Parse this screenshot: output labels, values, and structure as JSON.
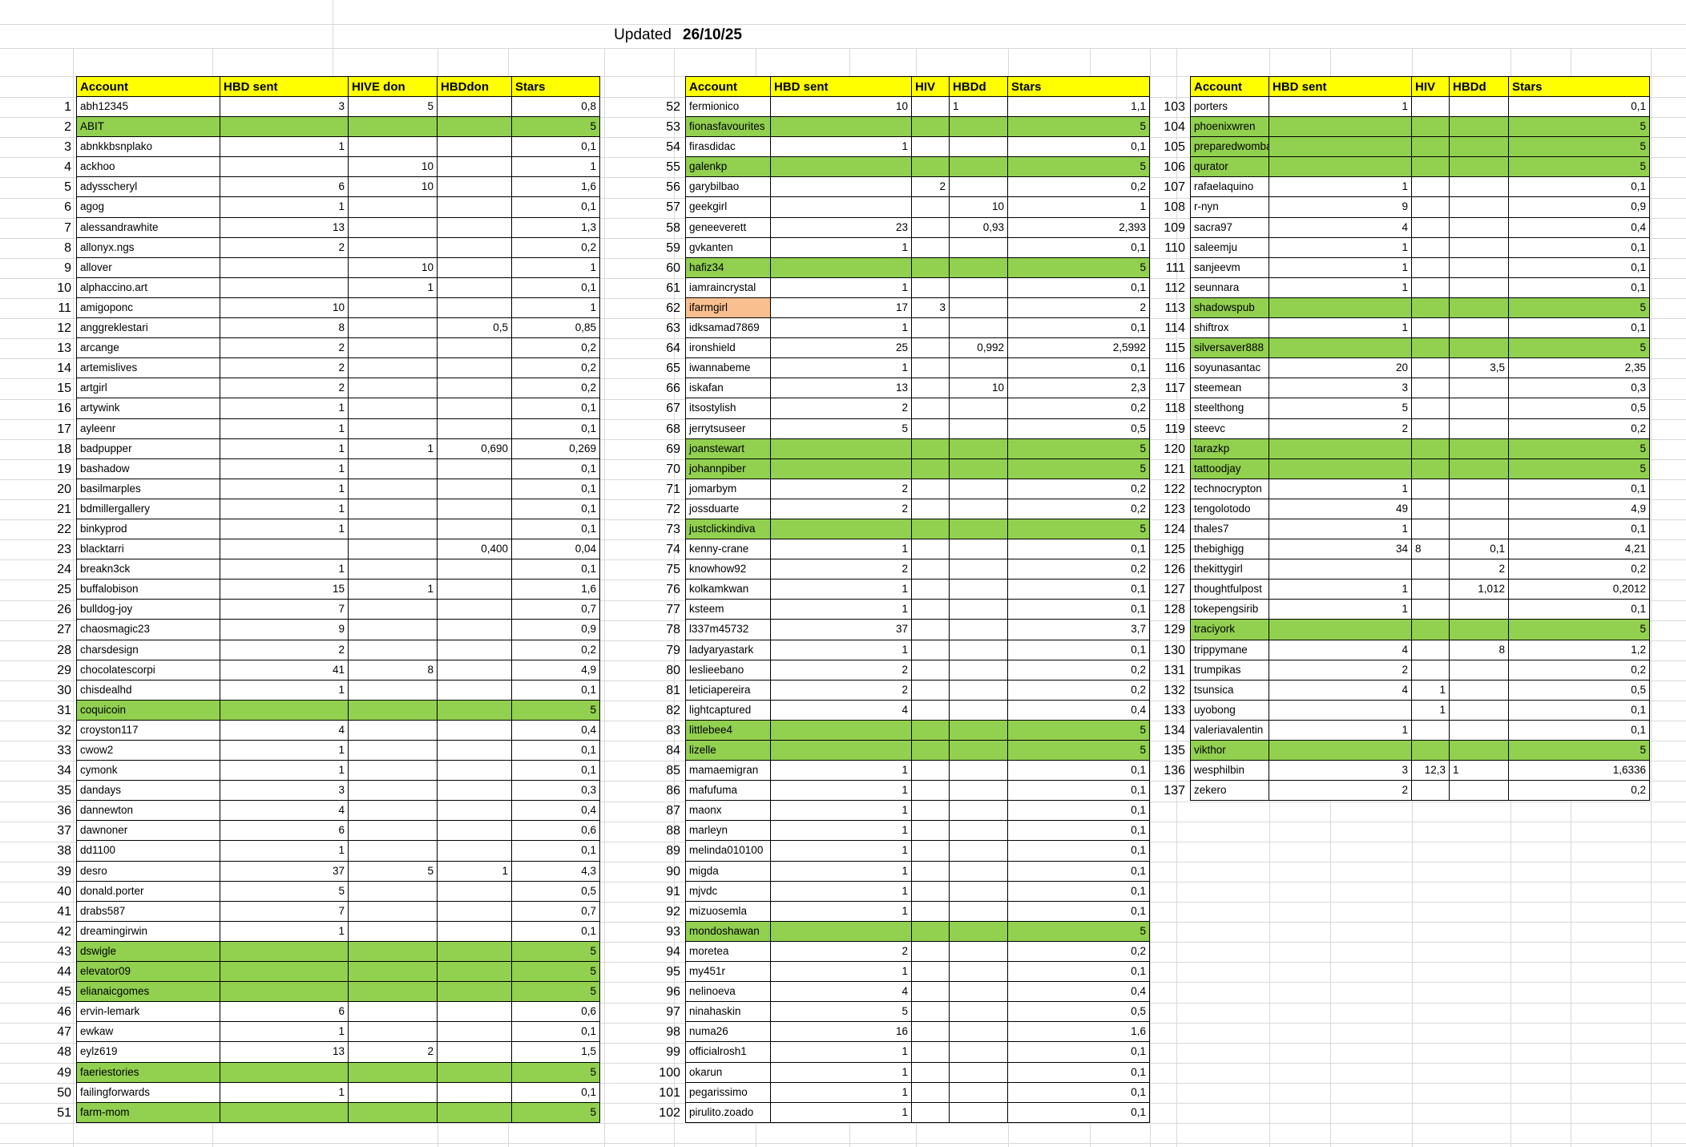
{
  "title": {
    "label": "Updated",
    "date": "26/10/25"
  },
  "colors": {
    "header_bg": "#FFFF00",
    "green_row": "#92D050",
    "orange_cell": "#FABF8F",
    "table_border": "#000000",
    "faint_grid": "#D9D9D9"
  },
  "row_format": [
    "account",
    "hbd_sent",
    "hive_don",
    "hbd_don",
    "stars",
    "flag: g=green-row, o=orange-account-cell, lh=hive-left-aligned, lb=hbdd-left-aligned"
  ],
  "tables": [
    {
      "start": 1,
      "headers": [
        "Account",
        "HBD sent",
        "HIVE don",
        "HBDdon",
        "Stars"
      ],
      "rows": [
        [
          "abh12345",
          "3",
          "5",
          "",
          "0,8",
          ""
        ],
        [
          "ABIT",
          "",
          "",
          "",
          "5",
          "g"
        ],
        [
          "abnkkbsnplako",
          "1",
          "",
          "",
          "0,1",
          ""
        ],
        [
          "ackhoo",
          "",
          "10",
          "",
          "1",
          ""
        ],
        [
          "adysscheryl",
          "6",
          "10",
          "",
          "1,6",
          ""
        ],
        [
          "agog",
          "1",
          "",
          "",
          "0,1",
          ""
        ],
        [
          "alessandrawhite",
          "13",
          "",
          "",
          "1,3",
          ""
        ],
        [
          "allonyx.ngs",
          "2",
          "",
          "",
          "0,2",
          ""
        ],
        [
          "allover",
          "",
          "10",
          "",
          "1",
          ""
        ],
        [
          "alphaccino.art",
          "",
          "1",
          "",
          "0,1",
          ""
        ],
        [
          "amigoponc",
          "10",
          "",
          "",
          "1",
          ""
        ],
        [
          "anggreklestari",
          "8",
          "",
          "0,5",
          "0,85",
          ""
        ],
        [
          "arcange",
          "2",
          "",
          "",
          "0,2",
          ""
        ],
        [
          "artemislives",
          "2",
          "",
          "",
          "0,2",
          ""
        ],
        [
          "artgirl",
          "2",
          "",
          "",
          "0,2",
          ""
        ],
        [
          "artywink",
          "1",
          "",
          "",
          "0,1",
          ""
        ],
        [
          "ayleenr",
          "1",
          "",
          "",
          "0,1",
          ""
        ],
        [
          "badpupper",
          "1",
          "1",
          "0,690",
          "0,269",
          ""
        ],
        [
          "bashadow",
          "1",
          "",
          "",
          "0,1",
          ""
        ],
        [
          "basilmarples",
          "1",
          "",
          "",
          "0,1",
          ""
        ],
        [
          "bdmillergallery",
          "1",
          "",
          "",
          "0,1",
          ""
        ],
        [
          "binkyprod",
          "1",
          "",
          "",
          "0,1",
          ""
        ],
        [
          "blacktarri",
          "",
          "",
          "0,400",
          "0,04",
          ""
        ],
        [
          "breakn3ck",
          "1",
          "",
          "",
          "0,1",
          ""
        ],
        [
          "buffalobison",
          "15",
          "1",
          "",
          "1,6",
          ""
        ],
        [
          "bulldog-joy",
          "7",
          "",
          "",
          "0,7",
          ""
        ],
        [
          "chaosmagic23",
          "9",
          "",
          "",
          "0,9",
          ""
        ],
        [
          "charsdesign",
          "2",
          "",
          "",
          "0,2",
          ""
        ],
        [
          "chocolatescorpi",
          "41",
          "8",
          "",
          "4,9",
          ""
        ],
        [
          "chisdealhd",
          "1",
          "",
          "",
          "0,1",
          ""
        ],
        [
          "coquicoin",
          "",
          "",
          "",
          "5",
          "g"
        ],
        [
          "croyston117",
          "4",
          "",
          "",
          "0,4",
          ""
        ],
        [
          "cwow2",
          "1",
          "",
          "",
          "0,1",
          ""
        ],
        [
          "cymonk",
          "1",
          "",
          "",
          "0,1",
          ""
        ],
        [
          "dandays",
          "3",
          "",
          "",
          "0,3",
          ""
        ],
        [
          "dannewton",
          "4",
          "",
          "",
          "0,4",
          ""
        ],
        [
          "dawnoner",
          "6",
          "",
          "",
          "0,6",
          ""
        ],
        [
          "dd1100",
          "1",
          "",
          "",
          "0,1",
          ""
        ],
        [
          "desro",
          "37",
          "5",
          "1",
          "4,3",
          ""
        ],
        [
          "donald.porter",
          "5",
          "",
          "",
          "0,5",
          ""
        ],
        [
          "drabs587",
          "7",
          "",
          "",
          "0,7",
          ""
        ],
        [
          "dreamingirwin",
          "1",
          "",
          "",
          "0,1",
          ""
        ],
        [
          "dswigle",
          "",
          "",
          "",
          "5",
          "g"
        ],
        [
          "elevator09",
          "",
          "",
          "",
          "5",
          "g"
        ],
        [
          "elianaicgomes",
          "",
          "",
          "",
          "5",
          "g"
        ],
        [
          "ervin-lemark",
          "6",
          "",
          "",
          "0,6",
          ""
        ],
        [
          "ewkaw",
          "1",
          "",
          "",
          "0,1",
          ""
        ],
        [
          "eylz619",
          "13",
          "2",
          "",
          "1,5",
          ""
        ],
        [
          "faeriestories",
          "",
          "",
          "",
          "5",
          "g"
        ],
        [
          "failingforwards",
          "1",
          "",
          "",
          "0,1",
          ""
        ],
        [
          "farm-mom",
          "",
          "",
          "",
          "5",
          "g"
        ]
      ]
    },
    {
      "start": 52,
      "headers": [
        "Account",
        "HBD sent",
        "HIV",
        "HBDd",
        "Stars"
      ],
      "rows": [
        [
          "fermionico",
          "10",
          "",
          "1",
          "1,1",
          "lb"
        ],
        [
          "fionasfavourites",
          "",
          "",
          "",
          "5",
          "g"
        ],
        [
          "firasdidac",
          "1",
          "",
          "",
          "0,1",
          ""
        ],
        [
          "galenkp",
          "",
          "",
          "",
          "5",
          "g"
        ],
        [
          "garybilbao",
          "",
          "2",
          "",
          "0,2",
          ""
        ],
        [
          "geekgirl",
          "",
          "",
          "10",
          "1",
          ""
        ],
        [
          "geneeverett",
          "23",
          "",
          "0,93",
          "2,393",
          ""
        ],
        [
          "gvkanten",
          "1",
          "",
          "",
          "0,1",
          ""
        ],
        [
          "hafiz34",
          "",
          "",
          "",
          "5",
          "g"
        ],
        [
          "iamraincrystal",
          "1",
          "",
          "",
          "0,1",
          ""
        ],
        [
          "ifarmgirl",
          "17",
          "3",
          "",
          "2",
          "o"
        ],
        [
          "idksamad7869",
          "1",
          "",
          "",
          "0,1",
          ""
        ],
        [
          "ironshield",
          "25",
          "",
          "0,992",
          "2,5992",
          ""
        ],
        [
          "iwannabeme",
          "1",
          "",
          "",
          "0,1",
          ""
        ],
        [
          "iskafan",
          "13",
          "",
          "10",
          "2,3",
          ""
        ],
        [
          "itsostylish",
          "2",
          "",
          "",
          "0,2",
          ""
        ],
        [
          "jerrytsuseer",
          "5",
          "",
          "",
          "0,5",
          ""
        ],
        [
          "joanstewart",
          "",
          "",
          "",
          "5",
          "g"
        ],
        [
          "johannpiber",
          "",
          "",
          "",
          "5",
          "g"
        ],
        [
          "jomarbym",
          "2",
          "",
          "",
          "0,2",
          ""
        ],
        [
          "jossduarte",
          "2",
          "",
          "",
          "0,2",
          ""
        ],
        [
          "justclickindiva",
          "",
          "",
          "",
          "5",
          "g"
        ],
        [
          "kenny-crane",
          "1",
          "",
          "",
          "0,1",
          ""
        ],
        [
          "knowhow92",
          "2",
          "",
          "",
          "0,2",
          ""
        ],
        [
          "kolkamkwan",
          "1",
          "",
          "",
          "0,1",
          ""
        ],
        [
          "ksteem",
          "1",
          "",
          "",
          "0,1",
          ""
        ],
        [
          "l337m45732",
          "37",
          "",
          "",
          "3,7",
          ""
        ],
        [
          "ladyaryastark",
          "1",
          "",
          "",
          "0,1",
          ""
        ],
        [
          "leslieebano",
          "2",
          "",
          "",
          "0,2",
          ""
        ],
        [
          "leticiapereira",
          "2",
          "",
          "",
          "0,2",
          ""
        ],
        [
          "lightcaptured",
          "4",
          "",
          "",
          "0,4",
          ""
        ],
        [
          "littlebee4",
          "",
          "",
          "",
          "5",
          "g"
        ],
        [
          "lizelle",
          "",
          "",
          "",
          "5",
          "g"
        ],
        [
          "mamaemigran",
          "1",
          "",
          "",
          "0,1",
          ""
        ],
        [
          "mafufuma",
          "1",
          "",
          "",
          "0,1",
          ""
        ],
        [
          "maonx",
          "1",
          "",
          "",
          "0,1",
          ""
        ],
        [
          "marleyn",
          "1",
          "",
          "",
          "0,1",
          ""
        ],
        [
          "melinda010100",
          "1",
          "",
          "",
          "0,1",
          ""
        ],
        [
          "migda",
          "1",
          "",
          "",
          "0,1",
          ""
        ],
        [
          "mjvdc",
          "1",
          "",
          "",
          "0,1",
          ""
        ],
        [
          "mizuosemla",
          "1",
          "",
          "",
          "0,1",
          ""
        ],
        [
          "mondoshawan",
          "",
          "",
          "",
          "5",
          "g"
        ],
        [
          "moretea",
          "2",
          "",
          "",
          "0,2",
          ""
        ],
        [
          "my451r",
          "1",
          "",
          "",
          "0,1",
          ""
        ],
        [
          "nelinoeva",
          "4",
          "",
          "",
          "0,4",
          ""
        ],
        [
          "ninahaskin",
          "5",
          "",
          "",
          "0,5",
          ""
        ],
        [
          "numa26",
          "16",
          "",
          "",
          "1,6",
          ""
        ],
        [
          "officialrosh1",
          "1",
          "",
          "",
          "0,1",
          ""
        ],
        [
          "okarun",
          "1",
          "",
          "",
          "0,1",
          ""
        ],
        [
          "pegarissimo",
          "1",
          "",
          "",
          "0,1",
          ""
        ],
        [
          "pirulito.zoado",
          "1",
          "",
          "",
          "0,1",
          ""
        ]
      ]
    },
    {
      "start": 103,
      "headers": [
        "Account",
        "HBD sent",
        "HIV",
        "HBDd",
        "Stars"
      ],
      "rows": [
        [
          "porters",
          "1",
          "",
          "",
          "0,1",
          ""
        ],
        [
          "phoenixwren",
          "",
          "",
          "",
          "5",
          "g"
        ],
        [
          "preparedwombat",
          "",
          "",
          "",
          "5",
          "g"
        ],
        [
          "qurator",
          "",
          "",
          "",
          "5",
          "g"
        ],
        [
          "rafaelaquino",
          "1",
          "",
          "",
          "0,1",
          ""
        ],
        [
          "r-nyn",
          "9",
          "",
          "",
          "0,9",
          ""
        ],
        [
          "sacra97",
          "4",
          "",
          "",
          "0,4",
          ""
        ],
        [
          "saleemju",
          "1",
          "",
          "",
          "0,1",
          ""
        ],
        [
          "sanjeevm",
          "1",
          "",
          "",
          "0,1",
          ""
        ],
        [
          "seunnara",
          "1",
          "",
          "",
          "0,1",
          ""
        ],
        [
          "shadowspub",
          "",
          "",
          "",
          "5",
          "g"
        ],
        [
          "shiftrox",
          "1",
          "",
          "",
          "0,1",
          ""
        ],
        [
          "silversaver888",
          "",
          "",
          "",
          "5",
          "g"
        ],
        [
          "soyunasantac",
          "20",
          "",
          "3,5",
          "2,35",
          ""
        ],
        [
          "steemean",
          "3",
          "",
          "",
          "0,3",
          ""
        ],
        [
          "steelthong",
          "5",
          "",
          "",
          "0,5",
          ""
        ],
        [
          "steevc",
          "2",
          "",
          "",
          "0,2",
          ""
        ],
        [
          "tarazkp",
          "",
          "",
          "",
          "5",
          "g"
        ],
        [
          "tattoodjay",
          "",
          "",
          "",
          "5",
          "g"
        ],
        [
          "technocrypton",
          "1",
          "",
          "",
          "0,1",
          ""
        ],
        [
          "tengolotodo",
          "49",
          "",
          "",
          "4,9",
          ""
        ],
        [
          "thales7",
          "1",
          "",
          "",
          "0,1",
          ""
        ],
        [
          "thebighigg",
          "34",
          "8",
          "0,1",
          "4,21",
          "lh"
        ],
        [
          "thekittygirl",
          "",
          "",
          "2",
          "0,2",
          ""
        ],
        [
          "thoughtfulpost",
          "1",
          "",
          "1,012",
          "0,2012",
          ""
        ],
        [
          "tokepengsirib",
          "1",
          "",
          "",
          "0,1",
          ""
        ],
        [
          "traciyork",
          "",
          "",
          "",
          "5",
          "g"
        ],
        [
          "trippymane",
          "4",
          "",
          "8",
          "1,2",
          ""
        ],
        [
          "trumpikas",
          "2",
          "",
          "",
          "0,2",
          ""
        ],
        [
          "tsunsica",
          "4",
          "1",
          "",
          "0,5",
          ""
        ],
        [
          "uyobong",
          "",
          "1",
          "",
          "0,1",
          ""
        ],
        [
          "valeriavalentin",
          "1",
          "",
          "",
          "0,1",
          ""
        ],
        [
          "vikthor",
          "",
          "",
          "",
          "5",
          "g"
        ],
        [
          "wesphilbin",
          "3",
          "12,3",
          "1",
          "1,6336",
          "lb"
        ],
        [
          "zekero",
          "2",
          "",
          "",
          "0,2",
          ""
        ]
      ]
    }
  ]
}
